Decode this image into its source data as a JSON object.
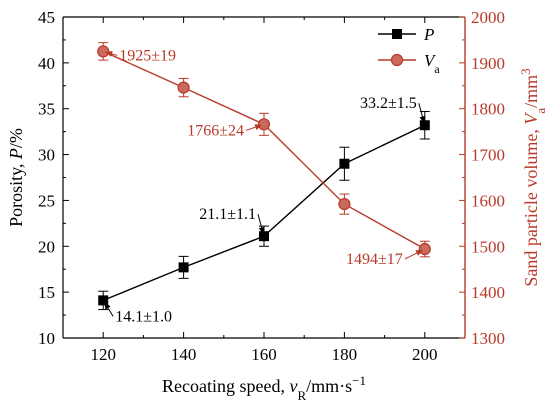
{
  "chart_data": {
    "type": "line",
    "x": [
      120,
      140,
      160,
      180,
      200
    ],
    "xlim": [
      110,
      210
    ],
    "xticks": [
      "120",
      "140",
      "160",
      "180",
      "200"
    ],
    "xlabel": {
      "prefix": "Recoating speed, ",
      "var": "v",
      "sub": "R",
      "unit": "/mm·s",
      "sup": "−1"
    },
    "y_left": {
      "lim": [
        10,
        45
      ],
      "ticks": [
        "10",
        "15",
        "20",
        "25",
        "30",
        "35",
        "40",
        "45"
      ],
      "label": {
        "prefix": "Porosity, ",
        "var": "P",
        "unit": "/%"
      },
      "color": "#000000"
    },
    "y_right": {
      "lim": [
        1300,
        2000
      ],
      "ticks": [
        "1300",
        "1400",
        "1500",
        "1600",
        "1700",
        "1800",
        "1900",
        "2000"
      ],
      "label": {
        "prefix": "Sand particle volume, ",
        "var": "V",
        "sub": "a",
        "unit": "/mm",
        "sup": "3"
      },
      "color": "#b8392a"
    },
    "series": [
      {
        "name": "P",
        "axis": "left",
        "marker": "square",
        "color": "#000000",
        "values": [
          14.1,
          17.7,
          21.1,
          29.0,
          33.2
        ],
        "errors": [
          1.0,
          1.2,
          1.1,
          1.8,
          1.5
        ]
      },
      {
        "name": "V",
        "name_sub": "a",
        "axis": "right",
        "marker": "circle",
        "color": "#b8392a",
        "values": [
          1925,
          1846,
          1766,
          1592,
          1494
        ],
        "errors": [
          19,
          20,
          24,
          22,
          17
        ]
      }
    ],
    "annotations": [
      {
        "text": "14.1±1.0",
        "series": 0,
        "index": 0,
        "color": "#000000"
      },
      {
        "text": "21.1±1.1",
        "series": 0,
        "index": 2,
        "color": "#000000"
      },
      {
        "text": "33.2±1.5",
        "series": 0,
        "index": 4,
        "color": "#000000"
      },
      {
        "text": "1925±19",
        "series": 1,
        "index": 0,
        "color": "#b8392a"
      },
      {
        "text": "1766±24",
        "series": 1,
        "index": 2,
        "color": "#b8392a"
      },
      {
        "text": "1494±17",
        "series": 1,
        "index": 4,
        "color": "#b8392a"
      }
    ],
    "legend_position": "top-right",
    "grid": false
  }
}
